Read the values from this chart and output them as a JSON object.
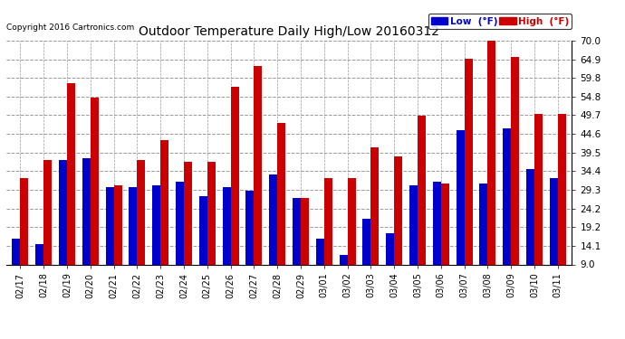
{
  "title": "Outdoor Temperature Daily High/Low 20160312",
  "copyright": "Copyright 2016 Cartronics.com",
  "categories": [
    "02/17",
    "02/18",
    "02/19",
    "02/20",
    "02/21",
    "02/22",
    "02/23",
    "02/24",
    "02/25",
    "02/26",
    "02/27",
    "02/28",
    "02/29",
    "03/01",
    "03/02",
    "03/03",
    "03/04",
    "03/05",
    "03/06",
    "03/07",
    "03/08",
    "03/09",
    "03/10",
    "03/11"
  ],
  "low": [
    16.0,
    14.5,
    37.5,
    38.0,
    30.0,
    30.0,
    30.5,
    31.5,
    27.5,
    30.0,
    29.0,
    33.5,
    27.0,
    16.0,
    11.5,
    21.5,
    17.5,
    30.5,
    31.5,
    45.5,
    31.0,
    46.0,
    35.0,
    32.5
  ],
  "high": [
    32.5,
    37.5,
    58.5,
    54.5,
    30.5,
    37.5,
    43.0,
    37.0,
    37.0,
    57.5,
    63.0,
    47.5,
    27.0,
    32.5,
    32.5,
    41.0,
    38.5,
    49.5,
    31.0,
    65.0,
    70.0,
    65.5,
    50.0,
    50.0
  ],
  "low_color": "#0000cc",
  "high_color": "#cc0000",
  "bg_color": "#ffffff",
  "grid_color": "#999999",
  "ylim": [
    9.0,
    70.0
  ],
  "yticks": [
    9.0,
    14.1,
    19.2,
    24.2,
    29.3,
    34.4,
    39.5,
    44.6,
    49.7,
    54.8,
    59.8,
    64.9,
    70.0
  ],
  "legend_low_label": "Low  (°F)",
  "legend_high_label": "High  (°F)"
}
